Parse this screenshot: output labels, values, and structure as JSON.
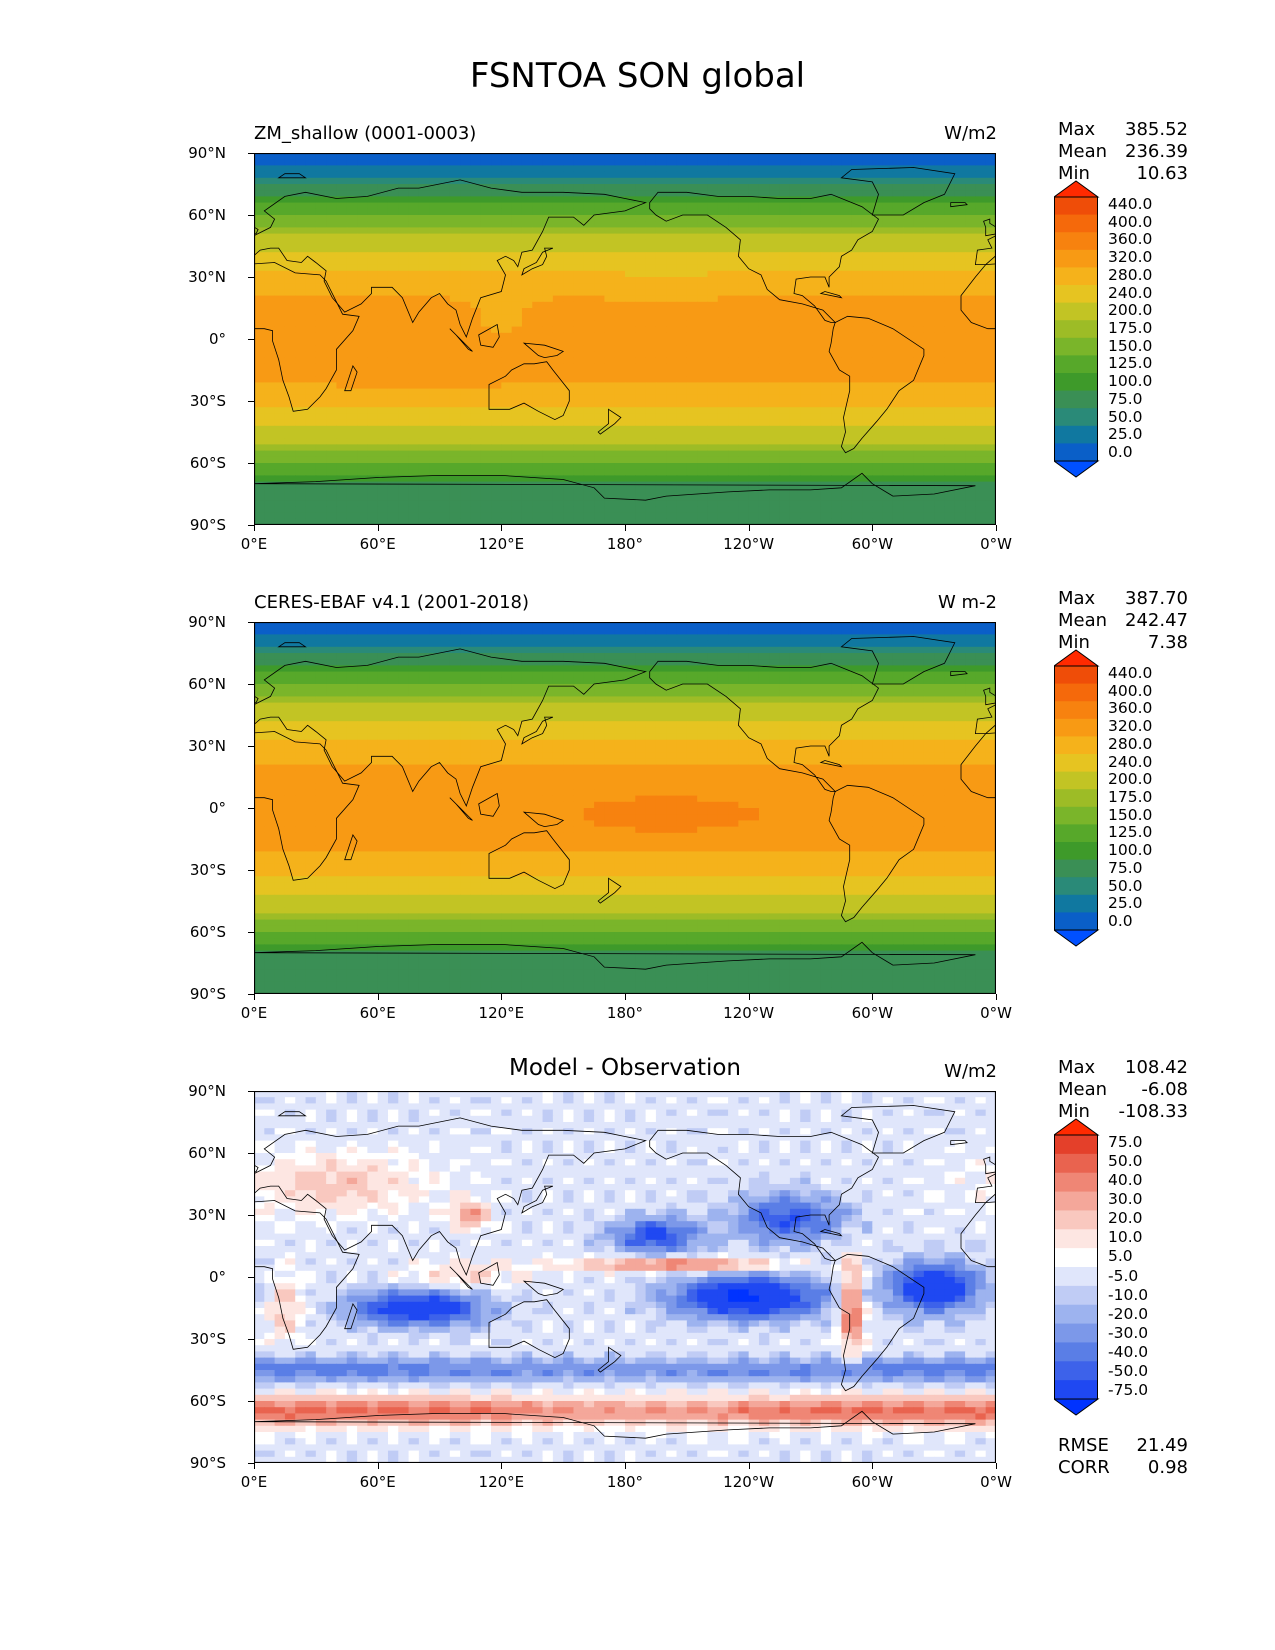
{
  "suptitle": "FSNTOA SON global",
  "panels": [
    {
      "title": "ZM_shallow (0001-0003)",
      "title_style": "left",
      "units": "W/m2",
      "stats": [
        {
          "label": "Max",
          "value": "385.52"
        },
        {
          "label": "Mean",
          "value": "236.39"
        },
        {
          "label": "Min",
          "value": "10.63"
        }
      ],
      "colorbar": [
        "440.0",
        "400.0",
        "360.0",
        "320.0",
        "280.0",
        "240.0",
        "200.0",
        "175.0",
        "150.0",
        "125.0",
        "100.0",
        "75.0",
        "50.0",
        "25.0",
        "0.0"
      ],
      "field": "model"
    },
    {
      "title": "CERES-EBAF v4.1 (2001-2018)",
      "title_style": "left",
      "units": "W m-2",
      "stats": [
        {
          "label": "Max",
          "value": "387.70"
        },
        {
          "label": "Mean",
          "value": "242.47"
        },
        {
          "label": "Min",
          "value": "7.38"
        }
      ],
      "colorbar": [
        "440.0",
        "400.0",
        "360.0",
        "320.0",
        "280.0",
        "240.0",
        "200.0",
        "175.0",
        "150.0",
        "125.0",
        "100.0",
        "75.0",
        "50.0",
        "25.0",
        "0.0"
      ],
      "field": "obs"
    },
    {
      "title": "Model - Observation",
      "title_style": "center",
      "units": "W/m2",
      "stats": [
        {
          "label": "Max",
          "value": "108.42"
        },
        {
          "label": "Mean",
          "value": "-6.08"
        },
        {
          "label": "Min",
          "value": "-108.33"
        }
      ],
      "colorbar": [
        "75.0",
        "50.0",
        "40.0",
        "30.0",
        "20.0",
        "10.0",
        "5.0",
        "-5.0",
        "-10.0",
        "-20.0",
        "-30.0",
        "-40.0",
        "-50.0",
        "-75.0"
      ],
      "field": "diff",
      "extra_stats": [
        {
          "label": "RMSE",
          "value": "21.49"
        },
        {
          "label": "CORR",
          "value": "0.98"
        }
      ]
    }
  ],
  "axes": {
    "yticks": [
      "90°N",
      "60°N",
      "30°N",
      "0°",
      "30°S",
      "60°S",
      "90°S"
    ],
    "xticks": [
      "0°E",
      "60°E",
      "120°E",
      "180°",
      "120°W",
      "60°W",
      "0°W"
    ]
  },
  "colors": {
    "main_cmap": [
      "#0050ff",
      "#0a5fc8",
      "#1078a0",
      "#2a8a78",
      "#3a8f55",
      "#3e9a2a",
      "#57a82a",
      "#7ab52a",
      "#9dbc26",
      "#c2c424",
      "#e6c421",
      "#f5b21b",
      "#f89a14",
      "#f7820f",
      "#f5690b",
      "#ef4d08",
      "#ff2a00"
    ],
    "diff_cmap": [
      "#0033ff",
      "#1f48f2",
      "#3d62ea",
      "#5a7ee6",
      "#7c98e9",
      "#9db3ef",
      "#c0ccf5",
      "#e0e6fb",
      "#ffffff",
      "#fde6e2",
      "#f9c8bf",
      "#f4a79a",
      "#ef8675",
      "#e9634f",
      "#e4402a",
      "#ff2a00"
    ],
    "coast": "#000000"
  },
  "chart_data": [
    {
      "type": "heatmap",
      "title": "ZM_shallow (0001-0003)",
      "units": "W/m2",
      "x_range": [
        "0°E",
        "0°W"
      ],
      "y_range": [
        "90°S",
        "90°N"
      ],
      "levels": [
        0,
        25,
        50,
        75,
        100,
        125,
        150,
        175,
        200,
        240,
        280,
        320,
        360,
        400,
        440
      ],
      "max": 385.52,
      "mean": 236.39,
      "min": 10.63
    },
    {
      "type": "heatmap",
      "title": "CERES-EBAF v4.1 (2001-2018)",
      "units": "W m-2",
      "x_range": [
        "0°E",
        "0°W"
      ],
      "y_range": [
        "90°S",
        "90°N"
      ],
      "levels": [
        0,
        25,
        50,
        75,
        100,
        125,
        150,
        175,
        200,
        240,
        280,
        320,
        360,
        400,
        440
      ],
      "max": 387.7,
      "mean": 242.47,
      "min": 7.38
    },
    {
      "type": "heatmap",
      "title": "Model - Observation",
      "units": "W/m2",
      "x_range": [
        "0°E",
        "0°W"
      ],
      "y_range": [
        "90°S",
        "90°N"
      ],
      "levels": [
        -75,
        -50,
        -40,
        -30,
        -20,
        -10,
        -5,
        5,
        10,
        20,
        30,
        40,
        50,
        75
      ],
      "max": 108.42,
      "mean": -6.08,
      "min": -108.33,
      "rmse": 21.49,
      "corr": 0.98
    }
  ]
}
